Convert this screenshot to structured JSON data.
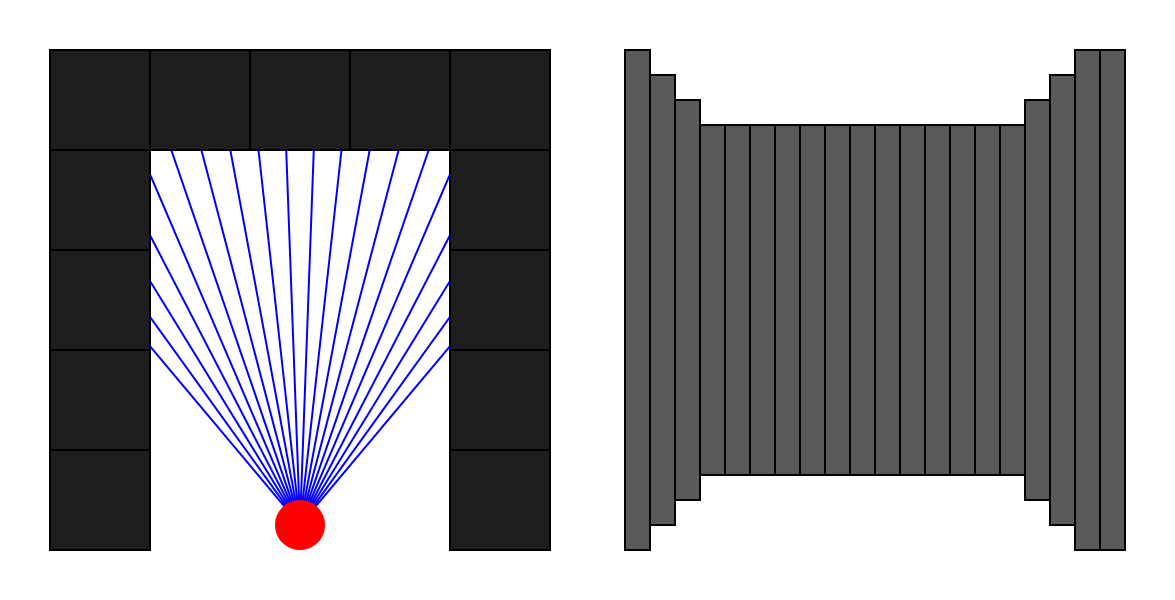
{
  "map": {
    "cols": 5,
    "rows": 5,
    "grid": [
      [
        1,
        1,
        1,
        1,
        1
      ],
      [
        1,
        0,
        0,
        0,
        1
      ],
      [
        1,
        0,
        0,
        0,
        1
      ],
      [
        1,
        0,
        0,
        0,
        1
      ],
      [
        1,
        0,
        0,
        0,
        1
      ]
    ]
  },
  "player": {
    "col": 2.5,
    "row": 4.75
  },
  "raycast": {
    "ray_count": 20,
    "view_angles_deg_from_vertical": [
      -40,
      40
    ]
  },
  "projection": {
    "column_count": 20,
    "wall_heights_fraction": [
      1.0,
      0.9,
      0.8,
      0.7,
      0.7,
      0.7,
      0.7,
      0.7,
      0.7,
      0.7,
      0.7,
      0.7,
      0.7,
      0.7,
      0.7,
      0.7,
      0.8,
      0.9,
      1.0,
      1.0
    ]
  },
  "colors": {
    "background": "#ffffff",
    "wall_cell": "#1e1e1e",
    "grid_line": "#000000",
    "ray": "#0000ff",
    "player": "#ff0000",
    "wall_column": "#5a5a5a"
  }
}
